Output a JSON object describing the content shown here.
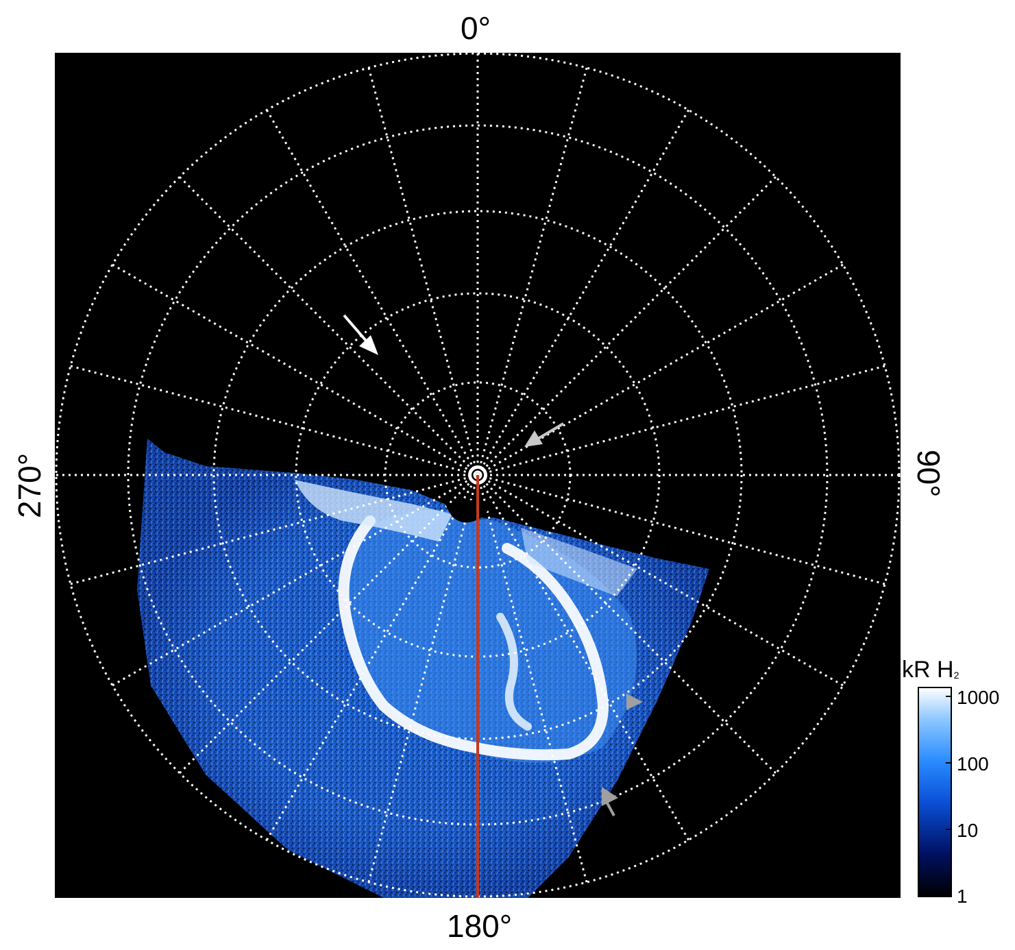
{
  "figure": {
    "type": "polar projection image",
    "background_color": "#000000",
    "grid_color": "#ffffff",
    "meridian_color": "#c8381c",
    "longitude_labels": {
      "top": "0°",
      "right": "90°",
      "bottom": "180°",
      "left": "270°"
    }
  },
  "colorbar": {
    "title_main": "kR H",
    "title_sub": "2",
    "scale": "log",
    "range": [
      1,
      1000
    ],
    "ticks": [
      "1000",
      "100",
      "10",
      "1"
    ],
    "colors": [
      "#000000",
      "#001060",
      "#0a4fd6",
      "#2a8cff",
      "#8fc8ff",
      "#ffffff"
    ]
  },
  "markers": [
    {
      "name": "white-arrow",
      "color": "#ffffff"
    },
    {
      "name": "grey-arrow-upper-right",
      "color": "#c8c8c8"
    },
    {
      "name": "grey-arrowhead-right",
      "color": "#a0a0a0"
    },
    {
      "name": "grey-arrow-lower-right",
      "color": "#a0a0a0"
    }
  ]
}
